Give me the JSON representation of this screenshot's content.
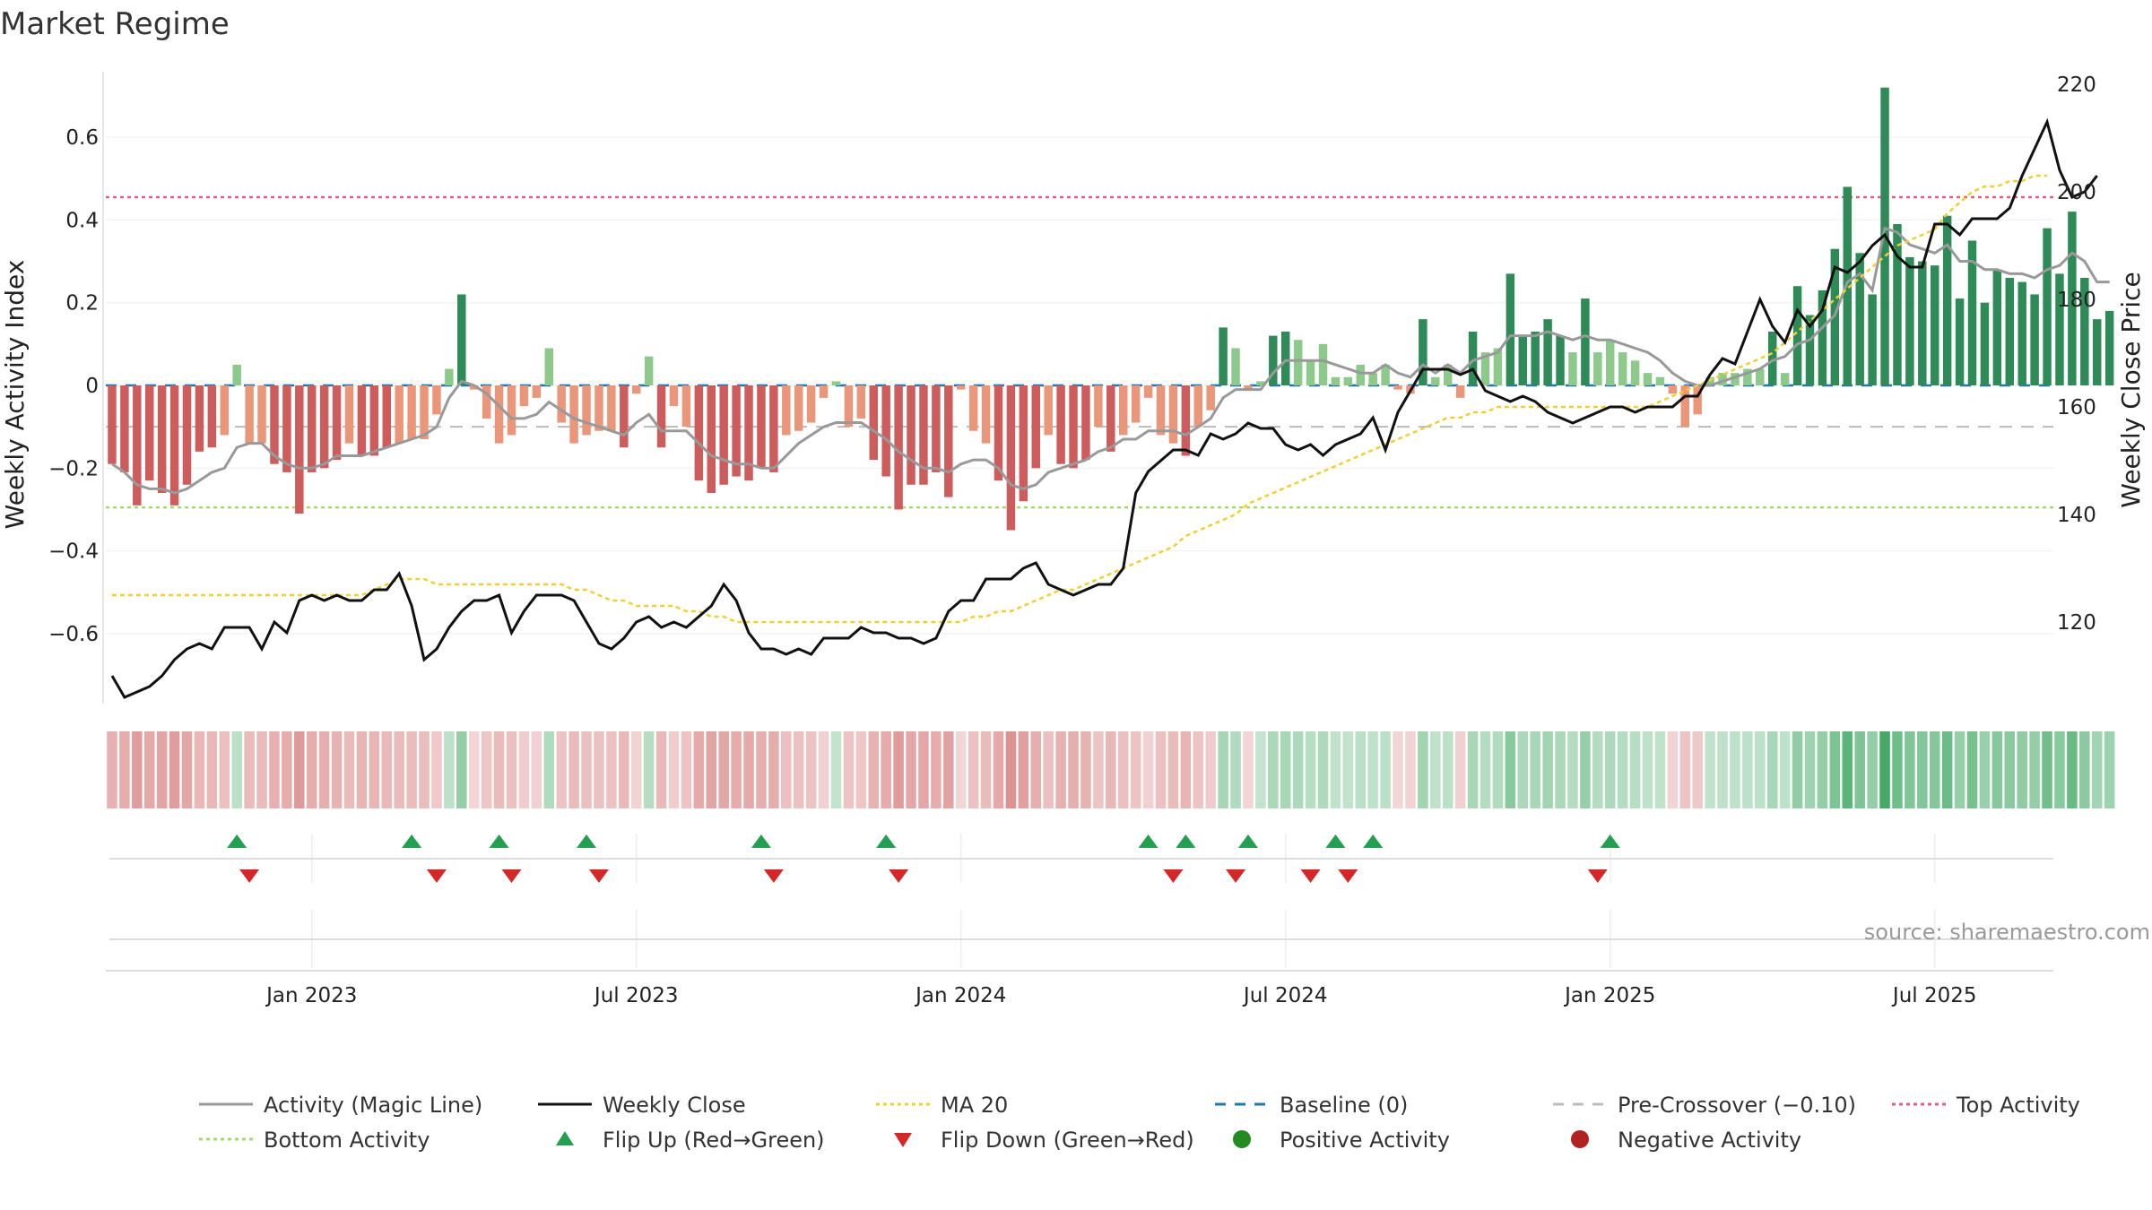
{
  "chart_data": {
    "type": "bar",
    "title": "Market Regime",
    "ylabel_left": "Weekly Activity Index",
    "ylabel_right": "Weekly Close Price",
    "source": "source: sharemaestro.com",
    "grid": true,
    "legend_position": "bottom",
    "yticks_left": [
      {
        "v": 0.6,
        "label": "0.6"
      },
      {
        "v": 0.4,
        "label": "0.4"
      },
      {
        "v": 0.2,
        "label": "0.2"
      },
      {
        "v": 0,
        "label": "0"
      },
      {
        "v": -0.2,
        "label": "−0.2"
      },
      {
        "v": -0.4,
        "label": "−0.4"
      },
      {
        "v": -0.6,
        "label": "−0.6"
      }
    ],
    "yticks_right": [
      {
        "v": 220,
        "label": "220"
      },
      {
        "v": 200,
        "label": "200"
      },
      {
        "v": 180,
        "label": "180"
      },
      {
        "v": 160,
        "label": "160"
      },
      {
        "v": 140,
        "label": "140"
      },
      {
        "v": 120,
        "label": "120"
      }
    ],
    "ylim_left": [
      -0.78,
      0.78
    ],
    "ylim_right": [
      104,
      224
    ],
    "x_ticks": [
      {
        "week": 16,
        "label": "Jan 2023"
      },
      {
        "week": 42,
        "label": "Jul 2023"
      },
      {
        "week": 68,
        "label": "Jan 2024"
      },
      {
        "week": 94,
        "label": "Jul 2024"
      },
      {
        "week": 120,
        "label": "Jan 2025"
      },
      {
        "week": 146,
        "label": "Jul 2025"
      }
    ],
    "x_range_weeks": [
      0,
      156
    ],
    "activity": [
      -0.19,
      -0.21,
      -0.29,
      -0.23,
      -0.26,
      -0.29,
      -0.24,
      -0.16,
      -0.15,
      -0.12,
      0.05,
      -0.14,
      -0.14,
      -0.19,
      -0.21,
      -0.31,
      -0.21,
      -0.2,
      -0.18,
      -0.14,
      -0.17,
      -0.17,
      -0.15,
      -0.14,
      -0.13,
      -0.13,
      -0.07,
      0.04,
      0.22,
      -0.01,
      -0.08,
      -0.14,
      -0.12,
      -0.05,
      -0.03,
      0.09,
      -0.09,
      -0.14,
      -0.12,
      -0.11,
      -0.11,
      -0.15,
      -0.02,
      0.07,
      -0.15,
      -0.05,
      -0.1,
      -0.23,
      -0.26,
      -0.24,
      -0.22,
      -0.23,
      -0.2,
      -0.21,
      -0.12,
      -0.11,
      -0.09,
      -0.03,
      0.01,
      -0.1,
      -0.08,
      -0.18,
      -0.22,
      -0.3,
      -0.24,
      -0.24,
      -0.21,
      -0.27,
      -0.01,
      -0.11,
      -0.14,
      -0.23,
      -0.35,
      -0.28,
      -0.2,
      -0.12,
      -0.19,
      -0.2,
      -0.18,
      -0.1,
      -0.16,
      -0.12,
      -0.09,
      -0.03,
      -0.12,
      -0.14,
      -0.17,
      -0.1,
      -0.06,
      0.14,
      0.09,
      -0.01,
      0.01,
      0.12,
      0.13,
      0.11,
      0.06,
      0.1,
      0.02,
      0.02,
      0.05,
      0.03,
      0.05,
      -0.01,
      -0.02,
      0.16,
      0.02,
      0.05,
      -0.03,
      0.13,
      0.08,
      0.09,
      0.27,
      0.12,
      0.13,
      0.16,
      0.12,
      0.08,
      0.21,
      0.08,
      0.11,
      0.08,
      0.06,
      0.03,
      0.02,
      -0.02,
      -0.1,
      -0.07,
      0.02,
      0.03,
      0.03,
      0.04,
      0.04,
      0.13,
      0.03,
      0.24,
      0.17,
      0.23,
      0.33,
      0.48,
      0.32,
      0.22,
      0.72,
      0.39,
      0.31,
      0.3,
      0.29,
      0.41,
      0.21,
      0.35,
      0.2,
      0.28,
      0.26,
      0.25,
      0.22,
      0.38,
      0.27,
      0.42,
      0.26,
      0.16,
      0.18
    ],
    "magic_line": [
      -0.19,
      -0.21,
      -0.24,
      -0.25,
      -0.25,
      -0.26,
      -0.25,
      -0.23,
      -0.21,
      -0.2,
      -0.15,
      -0.14,
      -0.14,
      -0.17,
      -0.19,
      -0.2,
      -0.2,
      -0.19,
      -0.17,
      -0.17,
      -0.17,
      -0.16,
      -0.15,
      -0.14,
      -0.13,
      -0.12,
      -0.1,
      -0.03,
      0.01,
      0.0,
      -0.02,
      -0.05,
      -0.08,
      -0.08,
      -0.07,
      -0.04,
      -0.06,
      -0.08,
      -0.09,
      -0.1,
      -0.11,
      -0.12,
      -0.09,
      -0.07,
      -0.11,
      -0.11,
      -0.11,
      -0.14,
      -0.17,
      -0.18,
      -0.19,
      -0.19,
      -0.2,
      -0.2,
      -0.17,
      -0.14,
      -0.12,
      -0.1,
      -0.09,
      -0.09,
      -0.09,
      -0.11,
      -0.13,
      -0.16,
      -0.18,
      -0.2,
      -0.2,
      -0.21,
      -0.19,
      -0.18,
      -0.18,
      -0.2,
      -0.24,
      -0.25,
      -0.24,
      -0.21,
      -0.2,
      -0.19,
      -0.18,
      -0.16,
      -0.15,
      -0.13,
      -0.13,
      -0.11,
      -0.11,
      -0.11,
      -0.12,
      -0.1,
      -0.08,
      -0.03,
      -0.01,
      -0.01,
      -0.01,
      0.03,
      0.06,
      0.06,
      0.06,
      0.06,
      0.05,
      0.04,
      0.03,
      0.03,
      0.05,
      0.03,
      0.02,
      0.05,
      0.03,
      0.05,
      0.03,
      0.06,
      0.07,
      0.08,
      0.12,
      0.12,
      0.12,
      0.13,
      0.12,
      0.11,
      0.12,
      0.11,
      0.11,
      0.1,
      0.09,
      0.08,
      0.06,
      0.03,
      0.01,
      0.0,
      0.0,
      0.01,
      0.02,
      0.03,
      0.04,
      0.06,
      0.07,
      0.1,
      0.11,
      0.14,
      0.17,
      0.25,
      0.27,
      0.23,
      0.38,
      0.37,
      0.34,
      0.33,
      0.32,
      0.34,
      0.3,
      0.3,
      0.28,
      0.28,
      0.27,
      0.27,
      0.26,
      0.28,
      0.29,
      0.32,
      0.3,
      0.25,
      0.25
    ],
    "weekly_close": [
      110,
      106,
      107,
      108,
      110,
      113,
      115,
      116,
      115,
      119,
      119,
      119,
      115,
      120,
      118,
      124,
      125,
      124,
      125,
      124,
      124,
      126,
      126,
      129,
      123,
      113,
      115,
      119,
      122,
      124,
      124,
      125,
      118,
      122,
      125,
      125,
      125,
      124,
      120,
      116,
      115,
      117,
      120,
      121,
      119,
      120,
      119,
      121,
      123,
      127,
      124,
      118,
      115,
      115,
      114,
      115,
      114,
      117,
      117,
      117,
      119,
      118,
      118,
      117,
      117,
      116,
      117,
      122,
      124,
      124,
      128,
      128,
      128,
      130,
      131,
      127,
      126,
      125,
      126,
      127,
      127,
      130,
      144,
      148,
      150,
      152,
      152,
      151,
      155,
      154,
      155,
      157,
      156,
      156,
      153,
      152,
      153,
      151,
      153,
      154,
      155,
      158,
      152,
      159,
      163,
      167,
      167,
      167,
      166,
      167,
      163,
      162,
      161,
      162,
      161,
      159,
      158,
      157,
      158,
      159,
      160,
      160,
      159,
      160,
      160,
      160,
      162,
      162,
      166,
      169,
      168,
      174,
      180,
      175,
      172,
      178,
      175,
      178,
      186,
      185,
      187,
      190,
      192,
      188,
      186,
      186,
      194,
      194,
      192,
      195,
      195,
      195,
      197,
      203,
      208,
      213,
      204,
      199,
      200,
      203
    ],
    "ma20": [
      125,
      125,
      125,
      125,
      125,
      125,
      125,
      125,
      125,
      125,
      125,
      125,
      125,
      125,
      125,
      125,
      125,
      125,
      125,
      125,
      125,
      126,
      127,
      128,
      128,
      128,
      127,
      127,
      127,
      127,
      127,
      127,
      127,
      127,
      127,
      127,
      127,
      126,
      126,
      125,
      124,
      124,
      123,
      123,
      123,
      123,
      122,
      122,
      121,
      121,
      120,
      120,
      120,
      120,
      120,
      120,
      120,
      120,
      120,
      120,
      120,
      120,
      120,
      120,
      120,
      120,
      120,
      120,
      120,
      121,
      121,
      122,
      122,
      123,
      124,
      125,
      126,
      126,
      127,
      128,
      129,
      130,
      131,
      132,
      133,
      134,
      136,
      137,
      138,
      139,
      140,
      142,
      143,
      144,
      145,
      146,
      147,
      148,
      149,
      150,
      151,
      152,
      153,
      154,
      155,
      156,
      157,
      158,
      158,
      159,
      159,
      160,
      160,
      160,
      160,
      160,
      160,
      160,
      160,
      160,
      160,
      160,
      160,
      160,
      161,
      162,
      163,
      164,
      165,
      166,
      167,
      168,
      169,
      170,
      172,
      174,
      176,
      178,
      180,
      182,
      184,
      186,
      188,
      190,
      191,
      192,
      193,
      196,
      198,
      200,
      201,
      201,
      202,
      202,
      203,
      203
    ],
    "heat_activity": [
      -0.19,
      -0.21,
      -0.29,
      -0.23,
      -0.26,
      -0.29,
      -0.24,
      -0.16,
      -0.15,
      -0.12,
      0.05,
      -0.14,
      -0.14,
      -0.19,
      -0.21,
      -0.31,
      -0.21,
      -0.2,
      -0.18,
      -0.14,
      -0.17,
      -0.17,
      -0.15,
      -0.14,
      -0.13,
      -0.13,
      -0.07,
      0.04,
      0.22,
      -0.01,
      -0.08,
      -0.14,
      -0.12,
      -0.05,
      -0.03,
      0.09,
      -0.09,
      -0.14,
      -0.12,
      -0.11,
      -0.11,
      -0.15,
      -0.02,
      0.07,
      -0.15,
      -0.05,
      -0.1,
      -0.23,
      -0.26,
      -0.24,
      -0.22,
      -0.23,
      -0.2,
      -0.21,
      -0.12,
      -0.11,
      -0.09,
      -0.03,
      0.01,
      -0.1,
      -0.08,
      -0.18,
      -0.22,
      -0.3,
      -0.24,
      -0.24,
      -0.21,
      -0.27,
      -0.01,
      -0.11,
      -0.14,
      -0.23,
      -0.35,
      -0.28,
      -0.2,
      -0.12,
      -0.19,
      -0.2,
      -0.18,
      -0.1,
      -0.16,
      -0.12,
      -0.09,
      -0.03,
      -0.12,
      -0.14,
      -0.17,
      -0.1,
      -0.06,
      0.14,
      0.09,
      -0.01,
      0.01,
      0.12,
      0.13,
      0.11,
      0.06,
      0.1,
      0.02,
      0.02,
      0.05,
      0.03,
      0.05,
      -0.01,
      -0.02,
      0.16,
      0.02,
      0.05,
      -0.03,
      0.13,
      0.08,
      0.09,
      0.27,
      0.12,
      0.13,
      0.16,
      0.12,
      0.08,
      0.21,
      0.08,
      0.11,
      0.08,
      0.06,
      0.03,
      0.02,
      -0.02,
      -0.1,
      -0.07,
      0.02,
      0.03,
      0.03,
      0.04,
      0.04,
      0.13,
      0.03,
      0.24,
      0.17,
      0.23,
      0.33,
      0.48,
      0.32,
      0.22,
      0.72,
      0.39,
      0.31,
      0.3,
      0.29,
      0.41,
      0.21,
      0.35,
      0.2,
      0.28,
      0.26,
      0.25,
      0.22,
      0.38,
      0.27,
      0.42,
      0.26,
      0.16,
      0.18
    ],
    "flip_up_weeks": [
      10,
      24,
      31,
      38,
      52,
      62,
      83,
      86,
      91,
      98,
      101,
      120
    ],
    "flip_down_weeks": [
      11,
      26,
      32,
      39,
      53,
      63,
      85,
      90,
      96,
      99,
      119
    ],
    "reference_lines": {
      "baseline": 0,
      "pre_crossover": -0.1,
      "top_activity": 0.455,
      "bottom_activity": -0.295
    },
    "colors": {
      "pos_strong": "#2e8b57",
      "pos_weak": "#8cc98a",
      "neg_strong": "#cd5c5c",
      "neg_weak": "#e9967a",
      "magic_line": "#999999",
      "weekly_close": "#111111",
      "ma20": "#f0d030",
      "baseline": "#1f77b4",
      "pre_crossover": "#bbbbbb",
      "top_activity": "#e06080",
      "bottom_activity": "#a6d96a",
      "flip_up": "#22a050",
      "flip_down": "#d62728",
      "positive_marker": "#228b22",
      "negative_marker": "#b22222"
    },
    "legend": [
      {
        "label": "Activity (Magic Line)",
        "kind": "line",
        "color": "#999999",
        "dash": ""
      },
      {
        "label": "Weekly Close",
        "kind": "line",
        "color": "#111111",
        "dash": ""
      },
      {
        "label": "MA 20",
        "kind": "line",
        "color": "#f0d030",
        "dash": "4 4"
      },
      {
        "label": "Baseline (0)",
        "kind": "line",
        "color": "#1f77b4",
        "dash": "12 10"
      },
      {
        "label": "Pre-Crossover (−0.10)",
        "kind": "line",
        "color": "#bbbbbb",
        "dash": "12 10"
      },
      {
        "label": "Top Activity",
        "kind": "line",
        "color": "#e06080",
        "dash": "4 4"
      },
      {
        "label": "Bottom Activity",
        "kind": "line",
        "color": "#a6d96a",
        "dash": "4 4"
      },
      {
        "label": "Flip Up (Red→Green)",
        "kind": "tri-up",
        "color": "#22a050",
        "dash": ""
      },
      {
        "label": "Flip Down (Green→Red)",
        "kind": "tri-down",
        "color": "#d62728",
        "dash": ""
      },
      {
        "label": "Positive Activity",
        "kind": "dot",
        "color": "#228b22",
        "dash": ""
      },
      {
        "label": "Negative Activity",
        "kind": "dot",
        "color": "#b22222",
        "dash": ""
      }
    ]
  }
}
